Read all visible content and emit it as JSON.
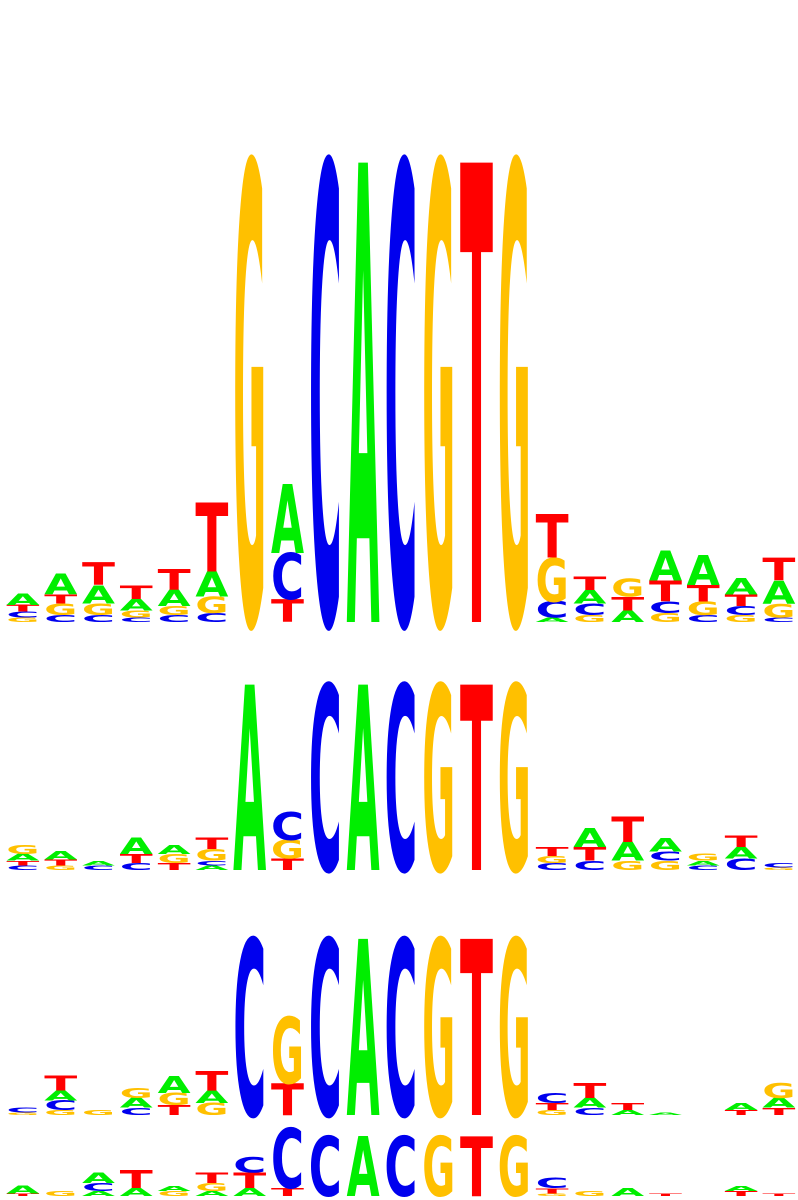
{
  "colors": {
    "A": "#00ee00",
    "C": "#0000ee",
    "G": "#ffc000",
    "T": "#ff0000"
  },
  "motifs": [
    {
      "name": "logo-row-1",
      "columns": [
        [
          [
            "G",
            0.02
          ],
          [
            "C",
            0.025
          ],
          [
            "T",
            0.03
          ],
          [
            "A",
            0.05
          ]
        ],
        [
          [
            "C",
            0.03
          ],
          [
            "G",
            0.05
          ],
          [
            "T",
            0.04
          ],
          [
            "A",
            0.09
          ]
        ],
        [
          [
            "C",
            0.03
          ],
          [
            "G",
            0.05
          ],
          [
            "A",
            0.08
          ],
          [
            "T",
            0.1
          ]
        ],
        [
          [
            "C",
            0.02
          ],
          [
            "G",
            0.03
          ],
          [
            "A",
            0.05
          ],
          [
            "T",
            0.06
          ]
        ],
        [
          [
            "C",
            0.03
          ],
          [
            "G",
            0.04
          ],
          [
            "A",
            0.07
          ],
          [
            "T",
            0.09
          ]
        ],
        [
          [
            "C",
            0.04
          ],
          [
            "G",
            0.07
          ],
          [
            "A",
            0.11
          ],
          [
            "T",
            0.3
          ]
        ],
        [
          [
            "G",
            2.0
          ]
        ],
        [
          [
            "T",
            0.1
          ],
          [
            "C",
            0.2
          ],
          [
            "A",
            0.3
          ]
        ],
        [
          [
            "C",
            2.0
          ]
        ],
        [
          [
            "A",
            2.0
          ]
        ],
        [
          [
            "C",
            2.0
          ]
        ],
        [
          [
            "G",
            2.0
          ]
        ],
        [
          [
            "T",
            2.0
          ]
        ],
        [
          [
            "G",
            2.0
          ]
        ],
        [
          [
            "A",
            0.02
          ],
          [
            "C",
            0.07
          ],
          [
            "G",
            0.19
          ],
          [
            "T",
            0.19
          ]
        ],
        [
          [
            "G",
            0.03
          ],
          [
            "C",
            0.05
          ],
          [
            "A",
            0.06
          ],
          [
            "T",
            0.06
          ]
        ],
        [
          [
            "A",
            0.05
          ],
          [
            "T",
            0.06
          ],
          [
            "G",
            0.08
          ]
        ],
        [
          [
            "G",
            0.04
          ],
          [
            "C",
            0.05
          ],
          [
            "T",
            0.09
          ],
          [
            "A",
            0.13
          ]
        ],
        [
          [
            "C",
            0.03
          ],
          [
            "G",
            0.06
          ],
          [
            "T",
            0.07
          ],
          [
            "A",
            0.13
          ]
        ],
        [
          [
            "G",
            0.03
          ],
          [
            "C",
            0.04
          ],
          [
            "T",
            0.05
          ],
          [
            "A",
            0.07
          ]
        ],
        [
          [
            "C",
            0.02
          ],
          [
            "G",
            0.06
          ],
          [
            "A",
            0.1
          ],
          [
            "T",
            0.1
          ]
        ]
      ]
    },
    {
      "name": "logo-row-2",
      "columns": [
        [
          [
            "C",
            0.02
          ],
          [
            "T",
            0.02
          ],
          [
            "A",
            0.03
          ],
          [
            "G",
            0.04
          ]
        ],
        [
          [
            "G",
            0.02
          ],
          [
            "T",
            0.025
          ],
          [
            "A",
            0.035
          ]
        ],
        [
          [
            "C",
            0.02
          ],
          [
            "A",
            0.02
          ]
        ],
        [
          [
            "C",
            0.03
          ],
          [
            "T",
            0.04
          ],
          [
            "A",
            0.07
          ]
        ],
        [
          [
            "T",
            0.03
          ],
          [
            "G",
            0.04
          ],
          [
            "A",
            0.04
          ]
        ],
        [
          [
            "A",
            0.02
          ],
          [
            "C",
            0.02
          ],
          [
            "G",
            0.05
          ],
          [
            "T",
            0.05
          ]
        ],
        [
          [
            "A",
            0.8
          ]
        ],
        [
          [
            "T",
            0.05
          ],
          [
            "G",
            0.08
          ],
          [
            "C",
            0.12
          ]
        ],
        [
          [
            "C",
            0.8
          ]
        ],
        [
          [
            "A",
            0.8
          ]
        ],
        [
          [
            "C",
            0.8
          ]
        ],
        [
          [
            "G",
            0.8
          ]
        ],
        [
          [
            "T",
            0.8
          ]
        ],
        [
          [
            "G",
            0.8
          ]
        ],
        [
          [
            "C",
            0.03
          ],
          [
            "G",
            0.03
          ],
          [
            "T",
            0.04
          ]
        ],
        [
          [
            "C",
            0.04
          ],
          [
            "T",
            0.06
          ],
          [
            "A",
            0.08
          ]
        ],
        [
          [
            "G",
            0.04
          ],
          [
            "A",
            0.08
          ],
          [
            "T",
            0.11
          ]
        ],
        [
          [
            "G",
            0.04
          ],
          [
            "C",
            0.04
          ],
          [
            "A",
            0.06
          ]
        ],
        [
          [
            "C",
            0.02
          ],
          [
            "A",
            0.02
          ],
          [
            "G",
            0.03
          ]
        ],
        [
          [
            "C",
            0.05
          ],
          [
            "A",
            0.05
          ],
          [
            "T",
            0.05
          ]
        ],
        [
          [
            "G",
            0.01
          ],
          [
            "C",
            0.02
          ]
        ]
      ]
    },
    {
      "name": "logo-row-3",
      "columns": [
        [
          [
            "G",
            0.01
          ],
          [
            "C",
            0.02
          ]
        ],
        [
          [
            "G",
            0.02
          ],
          [
            "C",
            0.04
          ],
          [
            "A",
            0.04
          ],
          [
            "T",
            0.06
          ]
        ],
        [
          [
            "G",
            0.02
          ]
        ],
        [
          [
            "C",
            0.03
          ],
          [
            "A",
            0.04
          ],
          [
            "G",
            0.04
          ]
        ],
        [
          [
            "T",
            0.04
          ],
          [
            "G",
            0.05
          ],
          [
            "A",
            0.07
          ]
        ],
        [
          [
            "G",
            0.05
          ],
          [
            "A",
            0.05
          ],
          [
            "T",
            0.08
          ]
        ],
        [
          [
            "C",
            0.72
          ]
        ],
        [
          [
            "T",
            0.13
          ],
          [
            "G",
            0.27
          ]
        ],
        [
          [
            "C",
            0.72
          ]
        ],
        [
          [
            "A",
            0.72
          ]
        ],
        [
          [
            "C",
            0.72
          ]
        ],
        [
          [
            "G",
            0.72
          ]
        ],
        [
          [
            "T",
            0.72
          ]
        ],
        [
          [
            "G",
            0.72
          ]
        ],
        [
          [
            "G",
            0.02
          ],
          [
            "T",
            0.03
          ],
          [
            "C",
            0.04
          ]
        ],
        [
          [
            "C",
            0.03
          ],
          [
            "A",
            0.04
          ],
          [
            "T",
            0.06
          ]
        ],
        [
          [
            "A",
            0.02
          ],
          [
            "T",
            0.03
          ]
        ],
        [
          [
            "A",
            0.01
          ]
        ],
        [],
        [
          [
            "T",
            0.02
          ],
          [
            "A",
            0.03
          ]
        ],
        [
          [
            "T",
            0.03
          ],
          [
            "A",
            0.04
          ],
          [
            "G",
            0.06
          ]
        ]
      ]
    },
    {
      "name": "logo-row-4",
      "columns": [
        [
          [
            "T",
            0.01
          ],
          [
            "A",
            0.03
          ]
        ],
        [
          [
            "G",
            0.02
          ]
        ],
        [
          [
            "A",
            0.02
          ],
          [
            "C",
            0.03
          ],
          [
            "A",
            0.04
          ]
        ],
        [
          [
            "A",
            0.03
          ],
          [
            "T",
            0.07
          ]
        ],
        [
          [
            "G",
            0.02
          ],
          [
            "A",
            0.02
          ]
        ],
        [
          [
            "A",
            0.02
          ],
          [
            "G",
            0.03
          ],
          [
            "T",
            0.04
          ]
        ],
        [
          [
            "A",
            0.03
          ],
          [
            "T",
            0.06
          ],
          [
            "C",
            0.06
          ]
        ],
        [
          [
            "T",
            0.03
          ],
          [
            "C",
            0.23
          ]
        ],
        [
          [
            "C",
            0.23
          ]
        ],
        [
          [
            "A",
            0.23
          ]
        ],
        [
          [
            "C",
            0.23
          ]
        ],
        [
          [
            "G",
            0.23
          ]
        ],
        [
          [
            "T",
            0.23
          ]
        ],
        [
          [
            "G",
            0.23
          ]
        ],
        [
          [
            "G",
            0.01
          ],
          [
            "T",
            0.02
          ],
          [
            "C",
            0.04
          ]
        ],
        [
          [
            "G",
            0.02
          ]
        ],
        [
          [
            "A",
            0.03
          ]
        ],
        [
          [
            "T",
            0.01
          ]
        ],
        [],
        [
          [
            "T",
            0.02
          ],
          [
            "A",
            0.02
          ]
        ],
        [
          [
            "T",
            0.01
          ]
        ]
      ]
    }
  ]
}
